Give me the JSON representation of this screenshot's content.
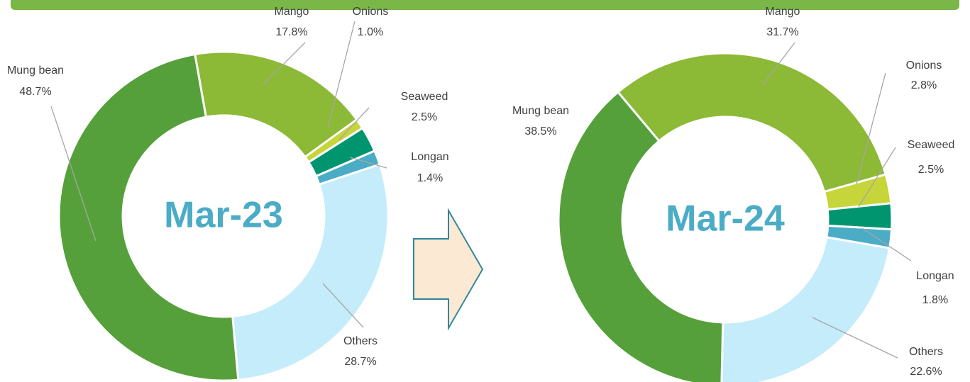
{
  "chart_data": [
    {
      "type": "donut",
      "title": "Mar-23",
      "categories": [
        "Mango",
        "Onions",
        "Seaweed",
        "Longan",
        "Others",
        "Mung bean"
      ],
      "values": [
        17.8,
        1.0,
        2.5,
        1.4,
        28.7,
        48.7
      ],
      "value_labels": [
        "17.8%",
        "1.0%",
        "2.5%",
        "1.4%",
        "28.7%",
        "48.7%"
      ],
      "colors": [
        "#8cb936",
        "#c5d53a",
        "#00956f",
        "#4bacc6",
        "#c4ecfb",
        "#55a03a"
      ]
    },
    {
      "type": "donut",
      "title": "Mar-24",
      "categories": [
        "Mango",
        "Onions",
        "Seaweed",
        "Longan",
        "Others",
        "Mung bean"
      ],
      "values": [
        31.7,
        2.8,
        2.5,
        1.8,
        22.6,
        38.5
      ],
      "value_labels": [
        "31.7%",
        "2.8%",
        "2.5%",
        "1.8%",
        "22.6%",
        "38.5%"
      ],
      "colors": [
        "#8cb936",
        "#c5d53a",
        "#00956f",
        "#4bacc6",
        "#c4ecfb",
        "#55a03a"
      ]
    }
  ]
}
